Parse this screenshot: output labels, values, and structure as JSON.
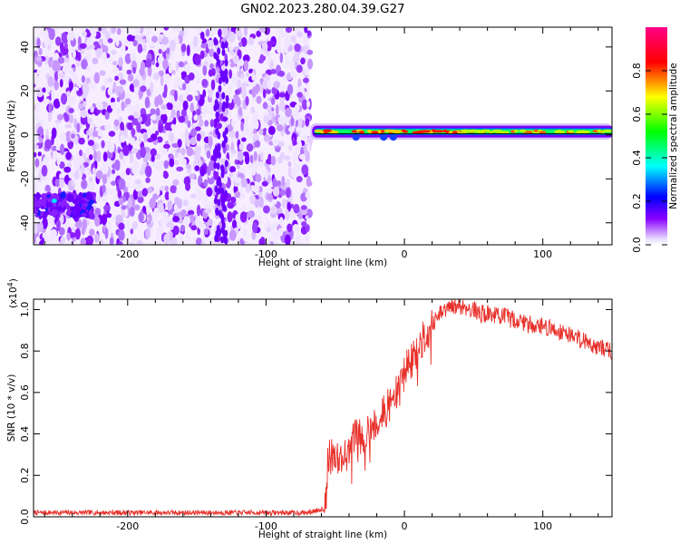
{
  "title": "GN02.2023.280.04.39.G27",
  "chart_data": [
    {
      "type": "heatmap",
      "xlabel": "Height of straight line (km)",
      "ylabel": "Frequency (Hz)",
      "xlim": [
        -268,
        150
      ],
      "ylim": [
        -50,
        49
      ],
      "xticks": [
        -200,
        -100,
        0,
        100
      ],
      "yticks": [
        -40,
        -20,
        0,
        20,
        40
      ],
      "colorbar": {
        "label": "Normalized spectral amplitude",
        "ticks": [
          0.0,
          0.2,
          0.4,
          0.6,
          0.8
        ],
        "tick_labels": [
          "0.0",
          "0.2",
          "0.4",
          "0.6",
          "0.8"
        ],
        "range": [
          0,
          1
        ],
        "colors": [
          "#ffffff",
          "#8800ff",
          "#0000ff",
          "#00ffff",
          "#00ff00",
          "#ffff00",
          "#ff0000",
          "#ff0088"
        ]
      },
      "regions": [
        {
          "x": [
            -268,
            -68
          ],
          "description_value": "broadband noise, normalized amplitude ~0.05-0.15"
        },
        {
          "x": [
            -268,
            -225
          ],
          "freq": -32,
          "amplitude": 0.2
        },
        {
          "x": [
            -68,
            150
          ],
          "freq": 1.5,
          "amplitude": 0.9
        }
      ],
      "signal_line": {
        "freq": 0.5
      }
    },
    {
      "type": "line",
      "xlabel": "Height of straight line (km)",
      "ylabel": "SNR (10 * v/v)",
      "multiplier_label": "(x10",
      "multiplier_exp": "4",
      "multiplier_close": ")",
      "xlim": [
        -268,
        150
      ],
      "ylim": [
        0,
        1.05
      ],
      "xticks": [
        -200,
        -100,
        0,
        100
      ],
      "yticks": [
        0.0,
        0.2,
        0.4,
        0.6,
        0.8,
        1.0
      ],
      "ytick_labels": [
        "0.0",
        "0.2",
        "0.4",
        "0.6",
        "0.8",
        "1.0"
      ],
      "color": "#e8302a",
      "series": [
        {
          "x": [
            -268,
            -200,
            -150,
            -100,
            -70,
            -58,
            -55,
            -50,
            -45,
            -40,
            -35,
            -30,
            -25,
            -20,
            -15,
            -10,
            -5,
            0,
            5,
            10,
            15,
            20,
            25,
            30,
            35,
            40,
            45,
            50,
            55,
            60,
            70,
            80,
            90,
            100,
            110,
            120,
            130,
            140,
            150
          ],
          "values": [
            0.02,
            0.02,
            0.02,
            0.02,
            0.02,
            0.04,
            0.28,
            0.3,
            0.28,
            0.32,
            0.4,
            0.38,
            0.44,
            0.45,
            0.5,
            0.55,
            0.6,
            0.7,
            0.75,
            0.8,
            0.88,
            0.92,
            0.97,
            1.0,
            1.01,
            1.02,
            1.01,
            1.0,
            0.98,
            0.98,
            0.97,
            0.95,
            0.93,
            0.92,
            0.9,
            0.88,
            0.85,
            0.82,
            0.8
          ]
        }
      ]
    }
  ]
}
